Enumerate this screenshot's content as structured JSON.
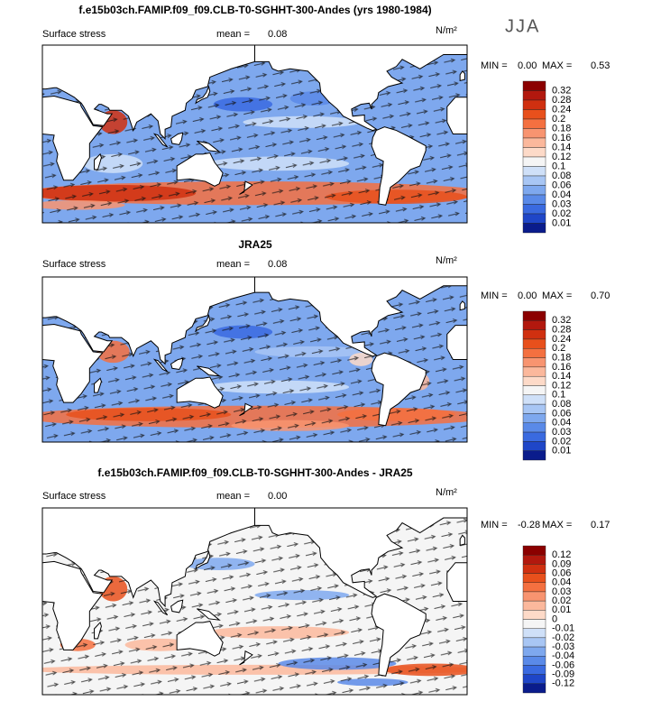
{
  "season": "JJA",
  "panels": [
    {
      "title": "f.e15b03ch.FAMIP.f09_f09.CLB-T0-SGHHT-300-Andes (yrs 1980-1984)",
      "variable": "Surface stress",
      "mean_label": "mean =",
      "mean": "0.08",
      "units": "N/m²",
      "min_label": "MIN =",
      "min": "0.00",
      "max_label": "MAX =",
      "max": "0.53",
      "colorbar": {
        "labels": [
          "0.32",
          "0.28",
          "0.24",
          "0.2",
          "0.18",
          "0.16",
          "0.14",
          "0.12",
          "0.1",
          "0.08",
          "0.06",
          "0.04",
          "0.03",
          "0.02",
          "0.01"
        ],
        "colors": [
          "#8b0000",
          "#b2180e",
          "#d03010",
          "#e8501c",
          "#f47040",
          "#f89470",
          "#fbb89c",
          "#fddac8",
          "#f5f5f5",
          "#cfe0f8",
          "#a8c6f4",
          "#7ea8ee",
          "#5a8ae8",
          "#3a6ae0",
          "#1f46c8",
          "#0a1c8c"
        ]
      }
    },
    {
      "title": "JRA25",
      "variable": "Surface stress",
      "mean_label": "mean =",
      "mean": "0.08",
      "units": "N/m²",
      "min_label": "MIN =",
      "min": "0.00",
      "max_label": "MAX =",
      "max": "0.70",
      "colorbar": {
        "labels": [
          "0.32",
          "0.28",
          "0.24",
          "0.2",
          "0.18",
          "0.16",
          "0.14",
          "0.12",
          "0.1",
          "0.08",
          "0.06",
          "0.04",
          "0.03",
          "0.02",
          "0.01"
        ],
        "colors": [
          "#8b0000",
          "#b2180e",
          "#d03010",
          "#e8501c",
          "#f47040",
          "#f89470",
          "#fbb89c",
          "#fddac8",
          "#f5f5f5",
          "#cfe0f8",
          "#a8c6f4",
          "#7ea8ee",
          "#5a8ae8",
          "#3a6ae0",
          "#1f46c8",
          "#0a1c8c"
        ]
      }
    },
    {
      "title": "f.e15b03ch.FAMIP.f09_f09.CLB-T0-SGHHT-300-Andes - JRA25",
      "variable": "Surface stress",
      "mean_label": "mean =",
      "mean": "0.00",
      "units": "N/m²",
      "min_label": "MIN =",
      "min": "-0.28",
      "max_label": "MAX =",
      "max": "0.17",
      "colorbar": {
        "labels": [
          "0.12",
          "0.09",
          "0.06",
          "0.04",
          "0.03",
          "0.02",
          "0.01",
          "0",
          "-0.01",
          "-0.02",
          "-0.03",
          "-0.04",
          "-0.06",
          "-0.09",
          "-0.12"
        ],
        "colors": [
          "#8b0000",
          "#b2180e",
          "#d03010",
          "#e8501c",
          "#f47040",
          "#f89470",
          "#fbb89c",
          "#fddac8",
          "#f5f5f5",
          "#cfe0f8",
          "#a8c6f4",
          "#7ea8ee",
          "#5a8ae8",
          "#3a6ae0",
          "#1f46c8",
          "#0a1c8c"
        ]
      }
    }
  ]
}
